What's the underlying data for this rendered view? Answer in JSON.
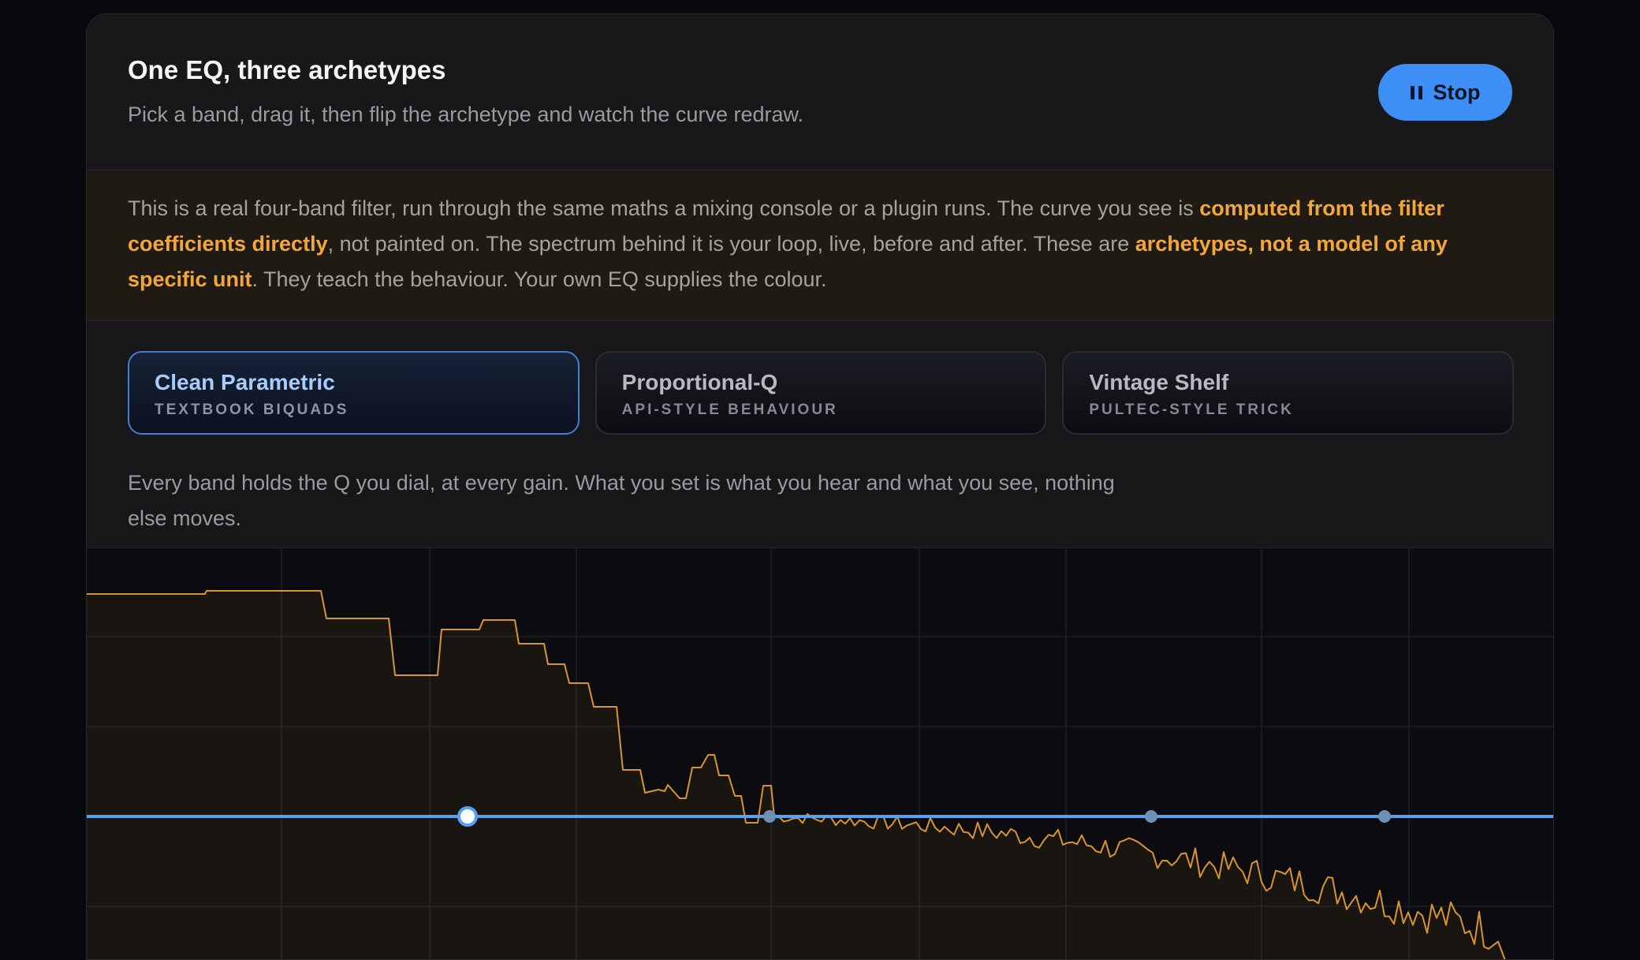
{
  "header": {
    "title": "One EQ, three archetypes",
    "subtitle": "Pick a band, drag it, then flip the archetype and watch the curve redraw.",
    "stop_label": "Stop"
  },
  "notice": {
    "part1": "This is a real four-band filter, run through the same maths a mixing console or a plugin runs. The curve you see is ",
    "highlight1": "computed from the filter coefficients directly",
    "part2": ", not painted on. The spectrum behind it is your loop, live, before and after. These are ",
    "highlight2": "archetypes, not a model of any specific unit",
    "part3": ". They teach the behaviour. Your own EQ supplies the colour."
  },
  "archetypes": [
    {
      "name": "Clean Parametric",
      "tag": "TEXTBOOK BIQUADS",
      "active": true
    },
    {
      "name": "Proportional-Q",
      "tag": "API-STYLE BEHAVIOUR",
      "active": false
    },
    {
      "name": "Vintage Shelf",
      "tag": "PULTEC-STYLE TRICK",
      "active": false
    }
  ],
  "description": "Every band holds the Q you dial, at every gain. What you set is what you hear and what you see, nothing else moves.",
  "eq_graph": {
    "colors": {
      "curve": "#5aa0f0",
      "spectrum": "#d8952f",
      "grid": "#1e1f26",
      "handle_selected": "#ffffff",
      "handle": "#6f8fb8"
    },
    "band_count": 4,
    "selected_band": 1,
    "bands_gain_db": [
      0,
      0,
      0,
      0
    ]
  }
}
